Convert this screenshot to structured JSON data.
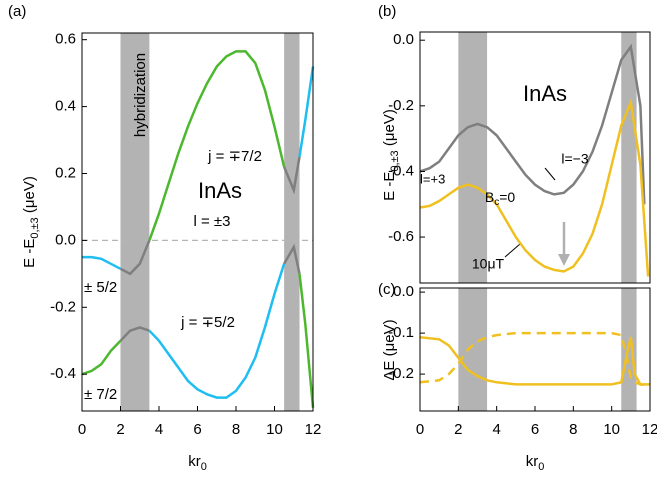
{
  "chart_data": [
    {
      "type": "line",
      "title": "(a)",
      "ylabel": "E -E",
      "ylabel_sub": "0,±3",
      "ylabel_unit": " (μeV)",
      "xlabel": "kr",
      "xlabel_sub": "0",
      "xlim": [
        0,
        12
      ],
      "xticks": [
        0,
        2,
        4,
        6,
        8,
        10,
        12
      ],
      "ylim": [
        -0.51,
        0.62
      ],
      "yticks": [
        -0.4,
        -0.2,
        {
          "value": 0,
          "label": "0.0"
        },
        0.2,
        0.4,
        0.6
      ],
      "zero_line": true,
      "bands": [
        [
          2,
          3.5
        ],
        [
          10.5,
          11.3
        ]
      ],
      "annotations": [
        "hybridization",
        "j = ∓7/2",
        "InAs",
        "l = ±3",
        "± 5/2",
        "j = ∓5/2",
        "± 7/2"
      ],
      "series": [
        {
          "color": "#1ebef0",
          "x": [
            0,
            0.5,
            1,
            1.5,
            2
          ],
          "values": [
            -0.05,
            -0.05,
            -0.055,
            -0.07,
            -0.085
          ]
        },
        {
          "color": "#7f7f7f",
          "x": [
            2,
            2.5,
            3,
            3.5
          ],
          "values": [
            -0.085,
            -0.1,
            -0.07,
            0.0
          ]
        },
        {
          "color": "#4cb82e",
          "x": [
            3.5,
            4,
            4.5,
            5,
            5.5,
            6,
            6.5,
            7,
            7.5,
            8,
            8.5,
            9,
            9.5,
            10,
            10.5
          ],
          "values": [
            0.0,
            0.08,
            0.17,
            0.26,
            0.34,
            0.41,
            0.47,
            0.52,
            0.55,
            0.565,
            0.565,
            0.53,
            0.45,
            0.34,
            0.22
          ]
        },
        {
          "color": "#7f7f7f",
          "x": [
            10.5,
            11,
            11.3
          ],
          "values": [
            0.22,
            0.15,
            0.25
          ]
        },
        {
          "color": "#1ebef0",
          "x": [
            11.3,
            11.6,
            12
          ],
          "values": [
            0.25,
            0.36,
            0.52
          ]
        },
        {
          "color": "#4cb82e",
          "x": [
            0,
            0.5,
            1,
            1.5,
            2
          ],
          "values": [
            -0.4,
            -0.39,
            -0.37,
            -0.33,
            -0.3
          ]
        },
        {
          "color": "#7f7f7f",
          "x": [
            2,
            2.5,
            3,
            3.5
          ],
          "values": [
            -0.3,
            -0.27,
            -0.26,
            -0.27
          ]
        },
        {
          "color": "#1ebef0",
          "x": [
            3.5,
            4,
            4.5,
            5,
            5.5,
            6,
            6.5,
            7,
            7.5,
            8,
            8.5,
            9,
            9.5,
            10,
            10.5
          ],
          "values": [
            -0.27,
            -0.3,
            -0.34,
            -0.38,
            -0.42,
            -0.445,
            -0.46,
            -0.47,
            -0.47,
            -0.45,
            -0.41,
            -0.35,
            -0.26,
            -0.16,
            -0.07
          ]
        },
        {
          "color": "#7f7f7f",
          "x": [
            10.5,
            11,
            11.3
          ],
          "values": [
            -0.07,
            -0.02,
            -0.1
          ]
        },
        {
          "color": "#4cb82e",
          "x": [
            11.3,
            11.6,
            12
          ],
          "values": [
            -0.1,
            -0.25,
            -0.5
          ]
        }
      ]
    },
    {
      "type": "line",
      "title": "(b)",
      "ylabel": "E -E",
      "ylabel_sub": "0,±3",
      "ylabel_unit": " (μeV)",
      "xlim": [
        0,
        12
      ],
      "ylim": [
        -0.74,
        0.025
      ],
      "yticks": [
        -0.6,
        -0.4,
        -0.2,
        {
          "value": 0,
          "label": "0.0"
        }
      ],
      "bands": [
        [
          2,
          3.5
        ],
        [
          10.5,
          11.3
        ]
      ],
      "annotations": [
        "InAs",
        "l=+3",
        "l=−3",
        "10μT"
      ],
      "bc_label": {
        "main": "B",
        "sub": "c",
        "rest": "=0"
      },
      "series": [
        {
          "color": "#7f7f7f",
          "x": [
            0,
            0.5,
            1,
            1.5,
            2,
            2.5,
            3,
            3.5,
            4,
            4.5,
            5,
            5.5,
            6,
            6.5,
            7,
            7.5,
            8,
            8.5,
            9,
            9.5,
            10,
            10.5,
            11,
            11.5,
            11.7
          ],
          "values": [
            -0.4,
            -0.39,
            -0.37,
            -0.33,
            -0.29,
            -0.265,
            -0.255,
            -0.265,
            -0.29,
            -0.33,
            -0.37,
            -0.41,
            -0.44,
            -0.46,
            -0.47,
            -0.465,
            -0.44,
            -0.4,
            -0.34,
            -0.26,
            -0.16,
            -0.06,
            -0.02,
            -0.2,
            -0.5
          ]
        },
        {
          "color": "#f0c020",
          "x": [
            0,
            0.5,
            1,
            1.5,
            2,
            2.5,
            3,
            3.5,
            4,
            4.5,
            5,
            5.5,
            6,
            6.5,
            7,
            7.5,
            8,
            8.5,
            9,
            9.5,
            10,
            10.5,
            11,
            11.5,
            11.9
          ],
          "values": [
            -0.51,
            -0.505,
            -0.49,
            -0.47,
            -0.45,
            -0.44,
            -0.45,
            -0.47,
            -0.5,
            -0.55,
            -0.6,
            -0.64,
            -0.67,
            -0.69,
            -0.7,
            -0.705,
            -0.69,
            -0.65,
            -0.59,
            -0.5,
            -0.38,
            -0.26,
            -0.19,
            -0.38,
            -0.72
          ]
        }
      ]
    },
    {
      "type": "line",
      "title": "(c)",
      "ylabel": "ΔE (μeV)",
      "xlabel": "kr",
      "xlabel_sub": "0",
      "xlim": [
        0,
        12
      ],
      "xticks": [
        0,
        2,
        4,
        6,
        8,
        10,
        12
      ],
      "ylim": [
        -0.29,
        0.01
      ],
      "yticks": [
        -0.2,
        -0.1,
        {
          "value": 0,
          "label": "0.0"
        }
      ],
      "bands": [
        [
          2,
          3.5
        ],
        [
          10.5,
          11.3
        ]
      ],
      "series": [
        {
          "color": "#f0c020",
          "x": [
            0,
            1,
            1.5,
            2,
            2.5,
            3,
            3.5,
            4,
            5,
            6,
            7,
            8,
            9,
            10,
            10.5,
            10.8,
            11,
            11.2,
            11.5,
            12
          ],
          "values": [
            -0.11,
            -0.115,
            -0.13,
            -0.16,
            -0.19,
            -0.205,
            -0.215,
            -0.22,
            -0.225,
            -0.225,
            -0.225,
            -0.225,
            -0.225,
            -0.225,
            -0.22,
            -0.15,
            -0.11,
            -0.2,
            -0.225,
            -0.225
          ]
        },
        {
          "color": "#f0c020",
          "dashed": true,
          "x": [
            0,
            1,
            1.5,
            2,
            2.5,
            3,
            3.5,
            4,
            5,
            6,
            7,
            8,
            9,
            10,
            10.5,
            10.8,
            11,
            11.2,
            11.5,
            12
          ],
          "values": [
            -0.22,
            -0.215,
            -0.2,
            -0.175,
            -0.14,
            -0.12,
            -0.11,
            -0.105,
            -0.1,
            -0.1,
            -0.1,
            -0.1,
            -0.1,
            -0.1,
            -0.105,
            -0.16,
            -0.21,
            -0.22,
            -0.225,
            -0.228
          ]
        }
      ]
    }
  ]
}
